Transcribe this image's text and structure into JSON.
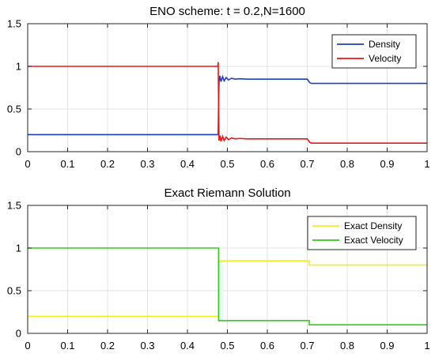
{
  "chart_data": [
    {
      "type": "line",
      "title": "ENO scheme:  t = 0.2,N=1600",
      "xlabel": "",
      "ylabel": "",
      "xlim": [
        0,
        1
      ],
      "ylim": [
        0,
        1.5
      ],
      "xticks": [
        "0",
        "0.1",
        "0.2",
        "0.3",
        "0.4",
        "0.5",
        "0.6",
        "0.7",
        "0.8",
        "0.9",
        "1"
      ],
      "yticks": [
        "0",
        "0.5",
        "1",
        "1.5"
      ],
      "grid": true,
      "legend_position": "top-right",
      "series": [
        {
          "name": "Density",
          "color": "#1f3fbf",
          "x": [
            0,
            0.477,
            0.478,
            0.479,
            0.481,
            0.484,
            0.488,
            0.492,
            0.497,
            0.503,
            0.51,
            0.52,
            0.53,
            0.55,
            0.6,
            0.65,
            0.7,
            0.703,
            0.706,
            0.71,
            0.8,
            0.9,
            1
          ],
          "y": [
            0.2,
            0.2,
            0.6,
            0.81,
            0.89,
            0.82,
            0.88,
            0.83,
            0.87,
            0.84,
            0.86,
            0.85,
            0.855,
            0.85,
            0.85,
            0.85,
            0.85,
            0.83,
            0.81,
            0.8,
            0.8,
            0.8,
            0.8
          ]
        },
        {
          "name": "Velocity",
          "color": "#e8161a",
          "x": [
            0,
            0.476,
            0.477,
            0.478,
            0.479,
            0.481,
            0.484,
            0.488,
            0.492,
            0.497,
            0.503,
            0.51,
            0.52,
            0.53,
            0.55,
            0.6,
            0.65,
            0.7,
            0.703,
            0.706,
            0.71,
            0.8,
            0.9,
            1
          ],
          "y": [
            1.0,
            1.0,
            1.05,
            0.55,
            0.13,
            0.19,
            0.12,
            0.18,
            0.13,
            0.17,
            0.14,
            0.16,
            0.15,
            0.155,
            0.15,
            0.15,
            0.15,
            0.15,
            0.13,
            0.11,
            0.1,
            0.1,
            0.1,
            0.1
          ]
        }
      ]
    },
    {
      "type": "line",
      "title": "Exact Riemann Solution",
      "xlabel": "",
      "ylabel": "",
      "xlim": [
        0,
        1
      ],
      "ylim": [
        0,
        1.5
      ],
      "xticks": [
        "0",
        "0.1",
        "0.2",
        "0.3",
        "0.4",
        "0.5",
        "0.6",
        "0.7",
        "0.8",
        "0.9",
        "1"
      ],
      "yticks": [
        "0",
        "0.5",
        "1",
        "1.5"
      ],
      "grid": true,
      "legend_position": "top-right",
      "series": [
        {
          "name": "Exact Density",
          "color": "#f0f020",
          "x": [
            0,
            0.478,
            0.478,
            0.705,
            0.705,
            1
          ],
          "y": [
            0.2,
            0.2,
            0.85,
            0.85,
            0.8,
            0.8
          ]
        },
        {
          "name": "Exact Velocity",
          "color": "#33cc1a",
          "x": [
            0,
            0.478,
            0.478,
            0.705,
            0.705,
            1
          ],
          "y": [
            1.0,
            1.0,
            0.15,
            0.15,
            0.1,
            0.1
          ]
        }
      ]
    }
  ]
}
